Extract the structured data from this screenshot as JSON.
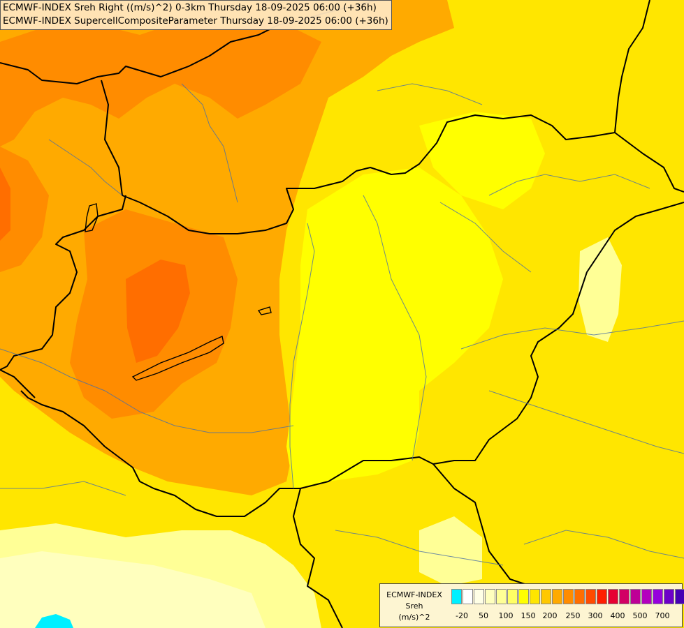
{
  "title": {
    "line1": "ECMWF-INDEX Sreh Right ((m/s)^2) 0-3km Thursday 18-09-2025 06:00 (+36h)",
    "line2": "ECMWF-INDEX SupercellCompositeParameter Thursday 18-09-2025 06:00 (+36h)"
  },
  "legend": {
    "line1": "ECMWF-INDEX",
    "line2": "Sreh",
    "line3": "(m/s)^2",
    "colors": [
      "#00f0ff",
      "#ffffff",
      "#ffffe6",
      "#ffffbe",
      "#ffff96",
      "#ffff64",
      "#ffff00",
      "#ffe600",
      "#ffc800",
      "#ffaa00",
      "#ff8c00",
      "#ff6e00",
      "#ff4b00",
      "#ff1e00",
      "#e60032",
      "#d20064",
      "#be0096",
      "#b400be",
      "#9600dc",
      "#6e00c8",
      "#4600b4",
      "#1e008c"
    ],
    "ticks": [
      "-20",
      "50",
      "100",
      "150",
      "200",
      "250",
      "300",
      "400",
      "500",
      "700"
    ]
  },
  "map": {
    "colors": {
      "light": "#ffffbe",
      "pale": "#ffff96",
      "yellow": "#ffff00",
      "gold": "#ffe600",
      "amber": "#ffc800",
      "orange": "#ffaa00",
      "deep": "#ff8c00",
      "red_orange": "#ff6e00",
      "cyan": "#00f0ff",
      "border": "#000000",
      "river": "#4a6fa5"
    }
  }
}
